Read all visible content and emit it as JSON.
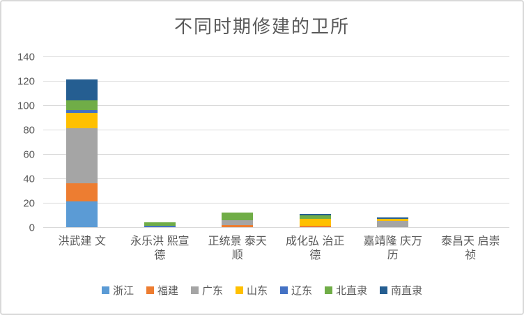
{
  "chart_data": {
    "type": "bar",
    "subtype": "stacked-vertical",
    "title": "不同时期修建的卫所",
    "categories": [
      {
        "label": "洪武建文",
        "lines": [
          "洪武建 文"
        ]
      },
      {
        "label": "永乐洪熙宣德",
        "lines": [
          "永乐洪 熙宣",
          "德"
        ]
      },
      {
        "label": "正统景泰天顺",
        "lines": [
          "正统景 泰天",
          "顺"
        ]
      },
      {
        "label": "成化弘治正德",
        "lines": [
          "成化弘 治正",
          "德"
        ]
      },
      {
        "label": "嘉靖隆庆万历",
        "lines": [
          "嘉靖隆 庆万",
          "历"
        ]
      },
      {
        "label": "泰昌天启崇祯",
        "lines": [
          "泰昌天 启崇",
          "祯"
        ]
      }
    ],
    "series": [
      {
        "name": "浙江",
        "color": "#5B9BD5",
        "values": [
          21,
          0,
          0,
          0,
          0,
          0
        ]
      },
      {
        "name": "福建",
        "color": "#ED7D31",
        "values": [
          15,
          0,
          2,
          1,
          0,
          0
        ]
      },
      {
        "name": "广东",
        "color": "#A5A5A5",
        "values": [
          45,
          0,
          4,
          0,
          5,
          0
        ]
      },
      {
        "name": "山东",
        "color": "#FFC000",
        "values": [
          13,
          0,
          0,
          6,
          2,
          0
        ]
      },
      {
        "name": "辽东",
        "color": "#4472C4",
        "values": [
          2,
          1,
          0,
          0,
          0,
          0
        ]
      },
      {
        "name": "北直隶",
        "color": "#70AD47",
        "values": [
          8,
          3,
          6,
          3,
          0,
          0
        ]
      },
      {
        "name": "南直隶",
        "color": "#255E91",
        "values": [
          17,
          0,
          0,
          1,
          1,
          0
        ]
      }
    ],
    "y_axis": {
      "ticks": [
        0,
        20,
        40,
        60,
        80,
        100,
        120,
        140
      ],
      "max": 140
    },
    "x_axis": {
      "tick_label_lines": 2
    },
    "grid": true,
    "legend_position": "bottom",
    "colors": {
      "text": "#595959",
      "gridline": "#D9D9D9",
      "background": "#FFFFFF",
      "border": "#D9D9D9"
    }
  }
}
